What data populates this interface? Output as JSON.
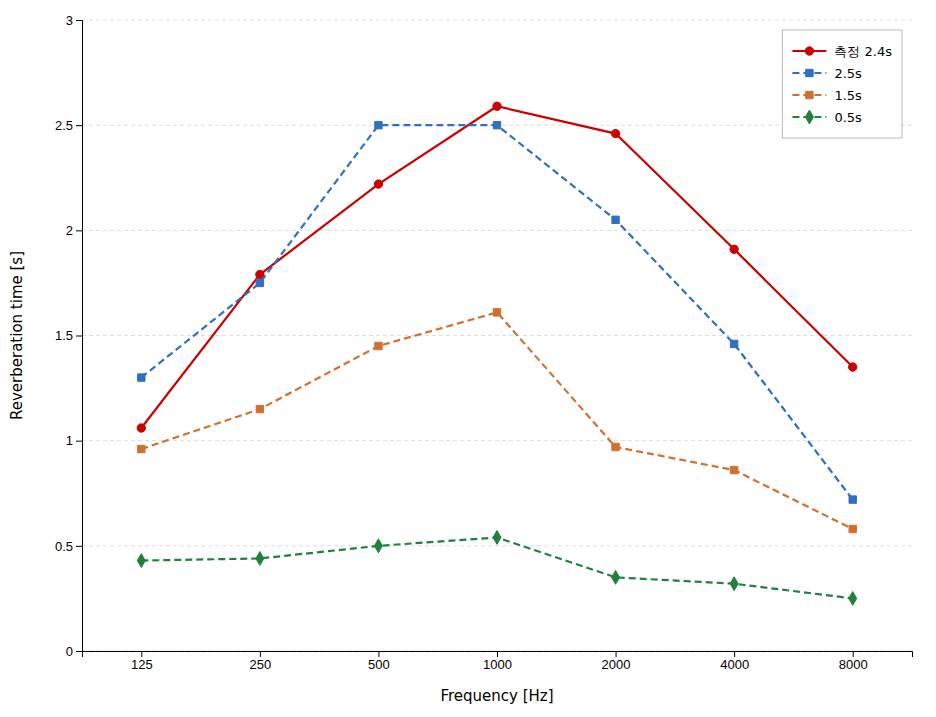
{
  "chart_data": {
    "type": "line",
    "categories": [
      "125",
      "250",
      "500",
      "1000",
      "2000",
      "4000",
      "8000"
    ],
    "series": [
      {
        "name": "측정 2.4s",
        "color": "#cc0000",
        "marker": "circle",
        "line_style": "solid",
        "values": [
          1.06,
          1.79,
          2.22,
          2.59,
          2.46,
          1.91,
          1.35
        ]
      },
      {
        "name": "2.5s",
        "color": "#3070c0",
        "marker": "square",
        "line_style": "dashed",
        "values": [
          1.3,
          1.75,
          2.5,
          2.5,
          2.05,
          1.46,
          0.72
        ]
      },
      {
        "name": "1.5s",
        "color": "#d07030",
        "marker": "square",
        "line_style": "dashed",
        "values": [
          0.96,
          1.15,
          1.45,
          1.61,
          0.97,
          0.86,
          0.58
        ]
      },
      {
        "name": "0.5s",
        "color": "#208040",
        "marker": "diamond",
        "line_style": "dashed",
        "values": [
          0.43,
          0.44,
          0.5,
          0.54,
          0.35,
          0.32,
          0.25
        ]
      }
    ],
    "xlabel": "Frequency [Hz]",
    "ylabel": "Reverberation time [s]",
    "ylim": [
      0,
      3.0
    ],
    "yticks": [
      0,
      0.5,
      1,
      1.5,
      2,
      2.5,
      3
    ],
    "grid": true,
    "legend": "upper right"
  }
}
